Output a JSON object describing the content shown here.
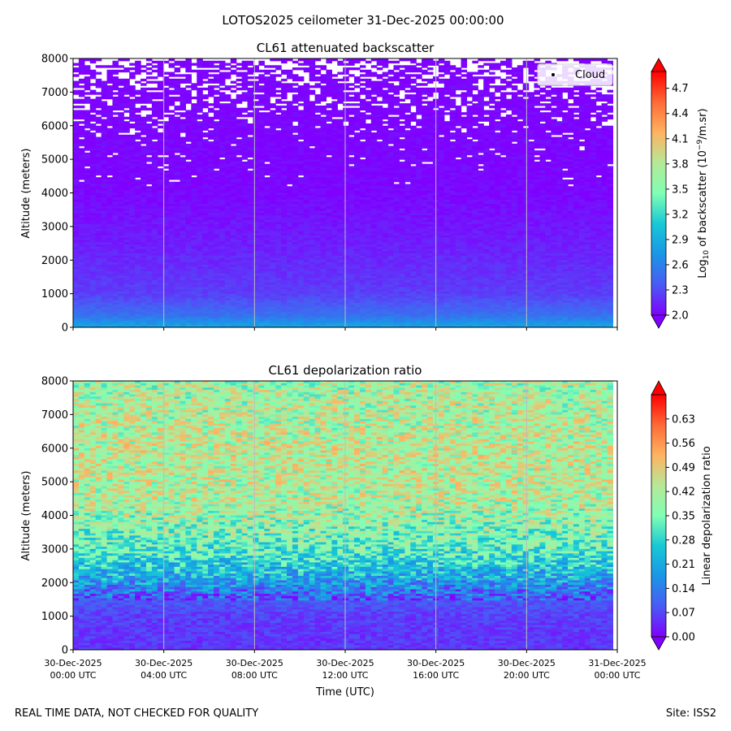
{
  "figure": {
    "suptitle": "LOTOS2025 ceilometer 31-Dec-2025 00:00:00",
    "footer_left": "REAL TIME DATA, NOT CHECKED FOR QUALITY",
    "footer_right": "Site: ISS2"
  },
  "chart_data": [
    {
      "type": "heatmap",
      "title": "CL61 attenuated backscatter",
      "ylabel": "Altitude (meters)",
      "xlabel": "",
      "ylim": [
        0,
        8000
      ],
      "y_ticks": [
        "0",
        "1000",
        "2000",
        "3000",
        "4000",
        "5000",
        "6000",
        "7000",
        "8000"
      ],
      "x_range_hours": [
        0,
        24
      ],
      "x_gridlines_hours": [
        4,
        8,
        12,
        16,
        20
      ],
      "data_end_hours": 23.8,
      "legend": {
        "label": "Cloud",
        "placement": "top-right"
      },
      "colorbar": {
        "label_prefix": "Log",
        "label_sub": "10",
        "label_mid": " of backscatter (10",
        "label_sup": "−9",
        "label_suffix": "/m.sr)",
        "min": 2.0,
        "max": 4.9,
        "ticks": [
          "2.0",
          "2.3",
          "2.6",
          "2.9",
          "3.2",
          "3.5",
          "3.8",
          "4.1",
          "4.4",
          "4.7"
        ],
        "extend": "both"
      },
      "profile": [
        {
          "altitude_m": 0,
          "value": 2.85
        },
        {
          "altitude_m": 350,
          "value": 2.5
        },
        {
          "altitude_m": 1000,
          "value": 2.25
        },
        {
          "altitude_m": 2500,
          "value": 2.12
        },
        {
          "altitude_m": 4000,
          "value": 2.03
        },
        {
          "altitude_m": 8000,
          "value": 2.0
        }
      ],
      "missing_data_fraction_profile": [
        {
          "altitude_m": 4200,
          "fraction": 0.01
        },
        {
          "altitude_m": 5500,
          "fraction": 0.05
        },
        {
          "altitude_m": 6200,
          "fraction": 0.15
        },
        {
          "altitude_m": 7000,
          "fraction": 0.3
        },
        {
          "altitude_m": 8000,
          "fraction": 0.5
        }
      ]
    },
    {
      "type": "heatmap",
      "title": "CL61 depolarization ratio",
      "ylabel": "Altitude (meters)",
      "xlabel": "Time (UTC)",
      "ylim": [
        0,
        8000
      ],
      "y_ticks": [
        "0",
        "1000",
        "2000",
        "3000",
        "4000",
        "5000",
        "6000",
        "7000",
        "8000"
      ],
      "x_range_hours": [
        0,
        24
      ],
      "x_gridlines_hours": [
        4,
        8,
        12,
        16,
        20
      ],
      "data_end_hours": 23.8,
      "x_ticks": [
        {
          "date": "30-Dec-2025",
          "time": "00:00 UTC"
        },
        {
          "date": "30-Dec-2025",
          "time": "04:00 UTC"
        },
        {
          "date": "30-Dec-2025",
          "time": "08:00 UTC"
        },
        {
          "date": "30-Dec-2025",
          "time": "12:00 UTC"
        },
        {
          "date": "30-Dec-2025",
          "time": "16:00 UTC"
        },
        {
          "date": "30-Dec-2025",
          "time": "20:00 UTC"
        },
        {
          "date": "31-Dec-2025",
          "time": "00:00 UTC"
        }
      ],
      "colorbar": {
        "label": "Linear depolarization ratio",
        "min": 0.0,
        "max": 0.7,
        "ticks": [
          "0.00",
          "0.07",
          "0.14",
          "0.21",
          "0.28",
          "0.35",
          "0.42",
          "0.49",
          "0.56",
          "0.63"
        ],
        "extend": "both"
      },
      "profile": [
        {
          "altitude_m": 0,
          "value": 0.05
        },
        {
          "altitude_m": 1000,
          "value": 0.06
        },
        {
          "altitude_m": 1600,
          "value": 0.1
        },
        {
          "altitude_m": 2100,
          "value": 0.2
        },
        {
          "altitude_m": 3000,
          "value": 0.33
        },
        {
          "altitude_m": 4500,
          "value": 0.42
        },
        {
          "altitude_m": 6000,
          "value": 0.43
        },
        {
          "altitude_m": 8000,
          "value": 0.4
        }
      ]
    }
  ]
}
